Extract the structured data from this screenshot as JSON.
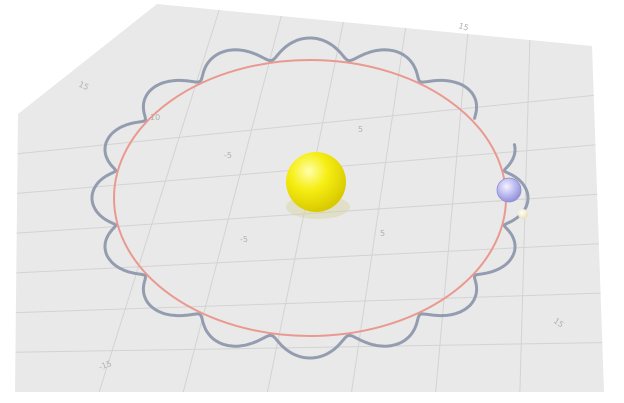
{
  "scene": {
    "type": "3d-orbit-visualization",
    "colors": {
      "background": "#ffffff",
      "plane": "#e9e9e9",
      "grid": "#d2d2d2",
      "orbit": "#e9998f",
      "trail": "#8f98ad",
      "sun": "#f6ee12",
      "planet": "#b9b7ef",
      "moon": "#f6f2cf"
    },
    "icons": [
      "sun-sphere-icon",
      "planet-sphere-icon",
      "moon-sphere-icon"
    ],
    "tick_labels": {
      "top_right": "15",
      "upper_left": "15",
      "lower_right": "15",
      "lower_left": "-15",
      "inner_a": "-5",
      "inner_b": "5",
      "inner_c": "-5",
      "inner_d": "5",
      "inner_e": "10"
    },
    "loops": 16
  }
}
